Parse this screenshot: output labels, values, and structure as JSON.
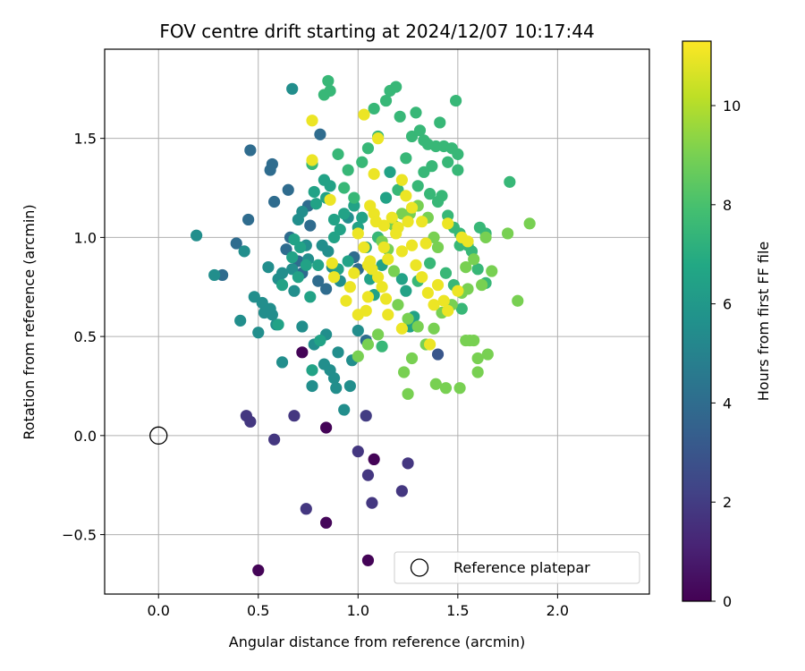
{
  "chart_data": {
    "type": "scatter",
    "title": "FOV centre drift starting at 2024/12/07 10:17:44",
    "xlabel": "Angular distance from reference (arcmin)",
    "ylabel": "Rotation from reference (arcmin)",
    "xlim": [
      -0.27,
      2.46
    ],
    "ylim": [
      -0.8,
      1.95
    ],
    "xticks": [
      0.0,
      0.5,
      1.0,
      1.5,
      2.0
    ],
    "xtick_labels": [
      "0.0",
      "0.5",
      "1.0",
      "1.5",
      "2.0"
    ],
    "yticks": [
      -0.5,
      0.0,
      0.5,
      1.0,
      1.5
    ],
    "ytick_labels": [
      "−0.5",
      "0.0",
      "0.5",
      "1.0",
      "1.5"
    ],
    "grid": true,
    "colormap": "viridis",
    "colorbar": {
      "label": "Hours from first FF file",
      "min": 0,
      "max": 11.3,
      "ticks": [
        0,
        2,
        4,
        6,
        8,
        10
      ],
      "tick_labels": [
        "0",
        "2",
        "4",
        "6",
        "8",
        "10"
      ]
    },
    "reference_point": {
      "x": 0.0,
      "y": 0.0
    },
    "legend": {
      "position": "lower-right",
      "entries": [
        "Reference platepar"
      ]
    },
    "points": [
      [
        0.5,
        -0.68,
        0.1
      ],
      [
        1.05,
        -0.63,
        0.1
      ],
      [
        0.84,
        -0.44,
        0.2
      ],
      [
        1.08,
        -0.12,
        0.1
      ],
      [
        0.72,
        0.42,
        0.1
      ],
      [
        0.84,
        0.04,
        0.1
      ],
      [
        0.44,
        0.1,
        1.8
      ],
      [
        0.46,
        0.07,
        1.8
      ],
      [
        0.58,
        -0.02,
        1.8
      ],
      [
        0.68,
        0.1,
        1.8
      ],
      [
        1.0,
        -0.08,
        1.8
      ],
      [
        1.05,
        -0.2,
        1.8
      ],
      [
        1.07,
        -0.34,
        1.8
      ],
      [
        1.25,
        -0.14,
        1.8
      ],
      [
        1.22,
        -0.28,
        1.8
      ],
      [
        0.74,
        -0.37,
        1.8
      ],
      [
        1.04,
        0.1,
        2.0
      ],
      [
        1.4,
        0.41,
        3.0
      ],
      [
        0.81,
        1.52,
        4.0
      ],
      [
        0.46,
        1.44,
        4.0
      ],
      [
        0.56,
        1.34,
        4.0
      ],
      [
        0.57,
        1.37,
        4.0
      ],
      [
        0.65,
        1.24,
        4.0
      ],
      [
        0.45,
        1.09,
        4.0
      ],
      [
        0.39,
        0.97,
        4.0
      ],
      [
        0.32,
        0.81,
        4.0
      ],
      [
        0.58,
        1.18,
        4.0
      ],
      [
        0.66,
        1.0,
        4.0
      ],
      [
        0.64,
        0.94,
        4.0
      ],
      [
        0.7,
        0.88,
        4.0
      ],
      [
        0.75,
        1.16,
        4.0
      ],
      [
        0.76,
        1.06,
        4.0
      ],
      [
        0.8,
        0.78,
        4.0
      ],
      [
        0.84,
        0.74,
        4.0
      ],
      [
        0.72,
        0.82,
        4.0
      ],
      [
        0.98,
        0.9,
        4.0
      ],
      [
        1.0,
        0.84,
        4.0
      ],
      [
        1.04,
        0.48,
        4.0
      ],
      [
        0.19,
        1.01,
        5.5
      ],
      [
        0.28,
        0.81,
        5.5
      ],
      [
        0.41,
        0.58,
        5.5
      ],
      [
        0.43,
        0.93,
        5.5
      ],
      [
        0.48,
        0.7,
        5.5
      ],
      [
        0.5,
        0.52,
        5.5
      ],
      [
        0.52,
        0.67,
        5.5
      ],
      [
        0.53,
        0.62,
        5.5
      ],
      [
        0.55,
        0.85,
        5.5
      ],
      [
        0.56,
        0.64,
        5.5
      ],
      [
        0.57,
        0.61,
        5.5
      ],
      [
        0.59,
        0.56,
        5.5
      ],
      [
        0.6,
        0.79,
        5.5
      ],
      [
        0.62,
        0.82,
        5.5
      ],
      [
        0.62,
        0.37,
        5.5
      ],
      [
        0.67,
        0.84,
        5.5
      ],
      [
        0.67,
        1.75,
        5.5
      ],
      [
        0.68,
        0.73,
        5.5
      ],
      [
        0.7,
        1.09,
        5.5
      ],
      [
        0.72,
        1.13,
        5.5
      ],
      [
        0.72,
        0.55,
        5.5
      ],
      [
        0.74,
        0.96,
        5.5
      ],
      [
        0.75,
        0.89,
        5.5
      ],
      [
        0.77,
        0.25,
        5.5
      ],
      [
        0.78,
        0.46,
        5.5
      ],
      [
        0.82,
        0.96,
        5.5
      ],
      [
        0.83,
        0.36,
        5.5
      ],
      [
        0.84,
        0.51,
        5.5
      ],
      [
        0.85,
        0.93,
        5.5
      ],
      [
        0.86,
        0.33,
        5.5
      ],
      [
        0.87,
        0.85,
        5.5
      ],
      [
        0.88,
        0.29,
        5.5
      ],
      [
        0.89,
        0.24,
        5.5
      ],
      [
        0.9,
        0.42,
        5.5
      ],
      [
        0.91,
        0.78,
        5.5
      ],
      [
        0.93,
        0.13,
        5.5
      ],
      [
        0.95,
        1.1,
        5.5
      ],
      [
        0.96,
        0.25,
        5.5
      ],
      [
        0.97,
        0.38,
        5.5
      ],
      [
        1.0,
        0.53,
        5.5
      ],
      [
        0.6,
        0.56,
        6.5
      ],
      [
        0.62,
        0.76,
        6.5
      ],
      [
        0.67,
        0.9,
        6.5
      ],
      [
        0.68,
        0.99,
        6.5
      ],
      [
        0.7,
        0.8,
        6.5
      ],
      [
        0.71,
        0.95,
        6.5
      ],
      [
        0.74,
        0.86,
        6.5
      ],
      [
        0.76,
        0.7,
        6.5
      ],
      [
        0.77,
        0.33,
        6.5
      ],
      [
        0.78,
        1.23,
        6.5
      ],
      [
        0.79,
        1.17,
        6.5
      ],
      [
        0.8,
        0.86,
        6.5
      ],
      [
        0.81,
        0.48,
        6.5
      ],
      [
        0.83,
        1.29,
        6.5
      ],
      [
        0.84,
        1.2,
        6.5
      ],
      [
        0.86,
        1.26,
        6.5
      ],
      [
        0.88,
        1.0,
        6.5
      ],
      [
        0.88,
        1.09,
        6.5
      ],
      [
        0.9,
        0.84,
        6.5
      ],
      [
        0.91,
        1.04,
        6.5
      ],
      [
        0.93,
        1.12,
        6.5
      ],
      [
        0.95,
        0.88,
        6.5
      ],
      [
        0.98,
        1.16,
        6.5
      ],
      [
        1.0,
        1.05,
        6.5
      ],
      [
        1.02,
        1.1,
        6.5
      ],
      [
        1.04,
        0.95,
        6.5
      ],
      [
        1.06,
        0.79,
        6.5
      ],
      [
        1.08,
        0.71,
        6.5
      ],
      [
        1.1,
        1.0,
        6.5
      ],
      [
        1.12,
        0.86,
        6.5
      ],
      [
        1.14,
        1.2,
        6.5
      ],
      [
        1.16,
        1.33,
        6.5
      ],
      [
        1.2,
        1.05,
        6.5
      ],
      [
        1.22,
        0.79,
        6.5
      ],
      [
        1.24,
        0.73,
        6.5
      ],
      [
        1.26,
        0.55,
        6.5
      ],
      [
        1.28,
        0.6,
        6.5
      ],
      [
        0.77,
        1.37,
        7.5
      ],
      [
        0.85,
        1.79,
        7.5
      ],
      [
        0.83,
        1.72,
        7.5
      ],
      [
        0.86,
        1.74,
        7.5
      ],
      [
        0.9,
        1.42,
        7.5
      ],
      [
        0.93,
        1.25,
        7.5
      ],
      [
        0.95,
        1.34,
        7.5
      ],
      [
        0.98,
        1.2,
        7.5
      ],
      [
        1.02,
        1.38,
        7.5
      ],
      [
        1.05,
        1.45,
        7.5
      ],
      [
        1.08,
        1.65,
        7.5
      ],
      [
        1.1,
        1.51,
        7.5
      ],
      [
        1.14,
        1.69,
        7.5
      ],
      [
        1.16,
        1.74,
        7.5
      ],
      [
        1.19,
        1.76,
        7.5
      ],
      [
        1.21,
        1.61,
        7.5
      ],
      [
        1.24,
        1.4,
        7.5
      ],
      [
        1.27,
        1.51,
        7.5
      ],
      [
        1.29,
        1.63,
        7.5
      ],
      [
        1.31,
        1.54,
        7.5
      ],
      [
        1.33,
        1.49,
        7.5
      ],
      [
        1.35,
        1.47,
        7.5
      ],
      [
        1.37,
        1.36,
        7.5
      ],
      [
        1.39,
        1.46,
        7.5
      ],
      [
        1.41,
        1.58,
        7.5
      ],
      [
        1.43,
        1.46,
        7.5
      ],
      [
        1.45,
        1.38,
        7.5
      ],
      [
        1.47,
        1.45,
        7.5
      ],
      [
        1.49,
        1.69,
        7.5
      ],
      [
        1.5,
        1.42,
        7.5
      ],
      [
        1.5,
        1.34,
        7.5
      ],
      [
        1.3,
        1.26,
        7.5
      ],
      [
        1.33,
        1.33,
        7.5
      ],
      [
        1.36,
        1.22,
        7.5
      ],
      [
        1.4,
        1.18,
        7.5
      ],
      [
        1.42,
        1.21,
        7.5
      ],
      [
        1.45,
        1.11,
        7.5
      ],
      [
        1.48,
        1.05,
        7.5
      ],
      [
        1.51,
        1.02,
        7.5
      ],
      [
        1.55,
        0.96,
        7.5
      ],
      [
        1.57,
        0.93,
        7.5
      ],
      [
        1.61,
        1.05,
        7.5
      ],
      [
        1.64,
        1.02,
        7.5
      ],
      [
        1.6,
        0.84,
        7.5
      ],
      [
        1.64,
        0.77,
        7.5
      ],
      [
        1.52,
        0.64,
        7.5
      ],
      [
        1.48,
        0.76,
        7.5
      ],
      [
        1.44,
        0.82,
        7.5
      ],
      [
        1.36,
        0.87,
        7.5
      ],
      [
        1.3,
        0.78,
        7.5
      ],
      [
        1.2,
        1.24,
        7.5
      ],
      [
        1.1,
        1.0,
        7.5
      ],
      [
        1.12,
        0.45,
        7.5
      ],
      [
        1.76,
        1.28,
        7.5
      ],
      [
        1.51,
        0.96,
        7.5
      ],
      [
        1.56,
        0.48,
        9.0
      ],
      [
        1.54,
        0.48,
        9.0
      ],
      [
        1.58,
        0.48,
        9.0
      ],
      [
        1.6,
        0.39,
        9.0
      ],
      [
        1.65,
        0.41,
        9.0
      ],
      [
        1.6,
        0.32,
        9.0
      ],
      [
        1.51,
        0.24,
        9.0
      ],
      [
        1.44,
        0.24,
        9.0
      ],
      [
        1.39,
        0.26,
        9.0
      ],
      [
        1.27,
        0.39,
        9.0
      ],
      [
        1.23,
        0.32,
        9.0
      ],
      [
        1.25,
        0.21,
        9.0
      ],
      [
        1.52,
        0.72,
        9.0
      ],
      [
        1.55,
        0.74,
        9.0
      ],
      [
        1.62,
        0.76,
        9.0
      ],
      [
        1.67,
        0.83,
        9.0
      ],
      [
        1.75,
        1.02,
        9.0
      ],
      [
        1.8,
        0.68,
        9.0
      ],
      [
        1.86,
        1.07,
        9.0
      ],
      [
        1.64,
        1.0,
        9.0
      ],
      [
        1.58,
        0.89,
        9.0
      ],
      [
        1.54,
        0.85,
        9.0
      ],
      [
        1.47,
        0.66,
        9.0
      ],
      [
        1.42,
        0.62,
        9.0
      ],
      [
        1.38,
        0.54,
        9.0
      ],
      [
        1.34,
        0.46,
        9.0
      ],
      [
        1.3,
        0.55,
        9.0
      ],
      [
        1.25,
        0.59,
        9.0
      ],
      [
        1.2,
        0.66,
        9.0
      ],
      [
        1.18,
        0.83,
        9.0
      ],
      [
        1.15,
        0.94,
        9.0
      ],
      [
        1.12,
        0.98,
        9.0
      ],
      [
        1.18,
        1.06,
        9.0
      ],
      [
        1.22,
        1.12,
        9.0
      ],
      [
        1.26,
        1.12,
        9.0
      ],
      [
        1.3,
        1.16,
        9.0
      ],
      [
        1.35,
        1.1,
        9.0
      ],
      [
        1.38,
        1.0,
        9.0
      ],
      [
        1.4,
        0.95,
        9.0
      ],
      [
        1.0,
        0.4,
        9.0
      ],
      [
        1.05,
        0.46,
        9.0
      ],
      [
        1.1,
        0.51,
        9.0
      ],
      [
        0.77,
        1.59,
        11.0
      ],
      [
        1.03,
        1.62,
        11.0
      ],
      [
        1.1,
        1.5,
        11.0
      ],
      [
        1.08,
        1.32,
        11.0
      ],
      [
        1.22,
        1.29,
        11.0
      ],
      [
        1.24,
        1.21,
        11.0
      ],
      [
        1.27,
        1.15,
        11.0
      ],
      [
        1.2,
        1.05,
        11.0
      ],
      [
        1.17,
        1.1,
        11.0
      ],
      [
        1.13,
        1.06,
        11.0
      ],
      [
        1.06,
        1.16,
        11.0
      ],
      [
        1.08,
        1.12,
        11.0
      ],
      [
        1.09,
        1.08,
        11.0
      ],
      [
        1.0,
        1.02,
        11.0
      ],
      [
        1.03,
        0.95,
        11.0
      ],
      [
        1.05,
        0.86,
        11.0
      ],
      [
        1.07,
        0.84,
        11.0
      ],
      [
        1.1,
        0.8,
        11.0
      ],
      [
        1.12,
        0.75,
        11.0
      ],
      [
        1.14,
        0.69,
        11.0
      ],
      [
        1.15,
        0.61,
        11.0
      ],
      [
        1.13,
        0.95,
        11.0
      ],
      [
        1.19,
        1.02,
        11.0
      ],
      [
        1.22,
        0.93,
        11.0
      ],
      [
        1.27,
        0.96,
        11.0
      ],
      [
        1.29,
        0.86,
        11.0
      ],
      [
        1.32,
        0.8,
        11.0
      ],
      [
        1.35,
        0.72,
        11.0
      ],
      [
        1.38,
        0.66,
        11.0
      ],
      [
        1.4,
        0.76,
        11.0
      ],
      [
        1.43,
        0.68,
        11.0
      ],
      [
        1.45,
        1.07,
        11.0
      ],
      [
        1.5,
        0.73,
        11.0
      ],
      [
        1.52,
        1.0,
        11.0
      ],
      [
        1.45,
        0.63,
        11.0
      ],
      [
        1.34,
        0.97,
        11.0
      ],
      [
        1.36,
        0.46,
        11.0
      ],
      [
        0.77,
        1.39,
        11.0
      ],
      [
        0.87,
        0.87,
        11.0
      ],
      [
        0.88,
        0.8,
        11.0
      ],
      [
        0.94,
        0.68,
        11.0
      ],
      [
        0.96,
        0.75,
        11.0
      ],
      [
        0.98,
        0.82,
        11.0
      ],
      [
        1.0,
        0.61,
        11.0
      ],
      [
        1.04,
        0.63,
        11.0
      ],
      [
        1.06,
        0.88,
        11.0
      ],
      [
        0.86,
        1.19,
        11.0
      ],
      [
        1.32,
        1.08,
        11.0
      ],
      [
        1.25,
        1.08,
        11.0
      ],
      [
        1.22,
        0.54,
        11.0
      ],
      [
        1.15,
        0.89,
        11.0
      ],
      [
        1.05,
        0.7,
        11.0
      ],
      [
        1.55,
        0.98,
        11.0
      ]
    ]
  }
}
